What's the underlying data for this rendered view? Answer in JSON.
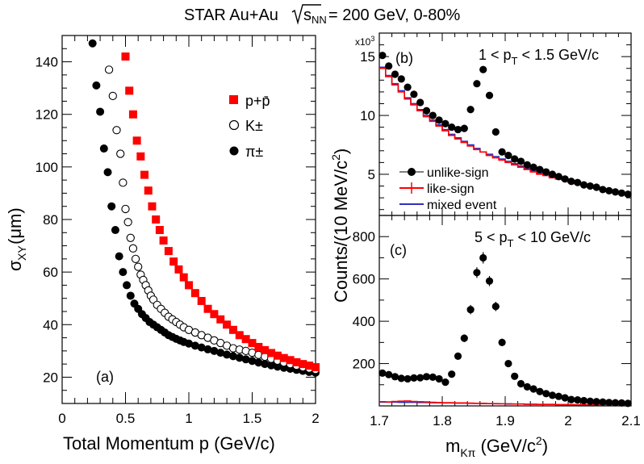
{
  "header": {
    "title_prefix": "STAR  Au+Au",
    "title_sqrt_s": "s",
    "title_sqrt_sub": "NN",
    "title_suffix": " = 200 GeV, 0-80%"
  },
  "colors": {
    "proton": "#ff0000",
    "kaon": "#000000",
    "pion": "#000000",
    "like_sign": "#ff0000",
    "mixed_event": "#3030c0"
  },
  "chart_data": [
    {
      "type": "scatter",
      "panel_label": "(a)",
      "xlabel": "Total Momentum p (GeV/c)",
      "ylabel_main": "σ",
      "ylabel_sub": "XY",
      "ylabel_unit": " (μm)",
      "xlim": [
        0,
        2
      ],
      "ylim": [
        10,
        150
      ],
      "xticks": [
        "0",
        "0.5",
        "1",
        "1.5",
        "2"
      ],
      "yticks": [
        "20",
        "40",
        "60",
        "80",
        "100",
        "120",
        "140"
      ],
      "ytick_values": [
        20,
        40,
        60,
        80,
        100,
        120,
        140
      ],
      "xtick_values": [
        0,
        0.5,
        1,
        1.5,
        2
      ],
      "legend_position": "top-right",
      "series": [
        {
          "name": "p+p̄",
          "marker": "square-filled",
          "x": [
            0.5,
            0.53,
            0.56,
            0.59,
            0.62,
            0.65,
            0.68,
            0.71,
            0.74,
            0.77,
            0.8,
            0.84,
            0.88,
            0.92,
            0.96,
            1.0,
            1.05,
            1.1,
            1.15,
            1.2,
            1.25,
            1.3,
            1.35,
            1.4,
            1.45,
            1.5,
            1.55,
            1.6,
            1.65,
            1.7,
            1.75,
            1.8,
            1.85,
            1.9,
            1.95,
            2.0
          ],
          "y": [
            142,
            129,
            120,
            110,
            104,
            97,
            91,
            85,
            80,
            76,
            72,
            68,
            64,
            61,
            58,
            55,
            52,
            49,
            46,
            44,
            42,
            40,
            38,
            36,
            34.5,
            33,
            31.5,
            30.3,
            29.2,
            28.2,
            27.3,
            26.5,
            25.7,
            25,
            24.4,
            23.8
          ]
        },
        {
          "name": "K±",
          "marker": "circle-open",
          "x": [
            0.37,
            0.4,
            0.43,
            0.46,
            0.48,
            0.5,
            0.52,
            0.54,
            0.56,
            0.58,
            0.6,
            0.62,
            0.64,
            0.66,
            0.68,
            0.7,
            0.72,
            0.75,
            0.78,
            0.81,
            0.84,
            0.87,
            0.9,
            0.93,
            0.96,
            1.0,
            1.05,
            1.1,
            1.15,
            1.2,
            1.25,
            1.3,
            1.35,
            1.4,
            1.45,
            1.5,
            1.55,
            1.6,
            1.65,
            1.7,
            1.75,
            1.8,
            1.85,
            1.9,
            1.95,
            2.0
          ],
          "y": [
            137,
            127,
            114,
            105,
            94,
            84,
            79,
            73,
            69,
            65,
            62,
            59,
            57,
            55,
            53,
            51,
            49.5,
            47.5,
            46,
            44.5,
            43,
            42,
            41,
            40,
            39,
            38,
            37,
            36,
            35,
            34,
            33,
            32,
            31,
            30.5,
            30,
            29.3,
            28.5,
            27.8,
            27,
            26.3,
            25.6,
            25,
            24.4,
            23.8,
            23.3,
            22.8
          ]
        },
        {
          "name": "π±",
          "marker": "circle-filled",
          "x": [
            0.24,
            0.27,
            0.3,
            0.33,
            0.36,
            0.39,
            0.42,
            0.45,
            0.48,
            0.51,
            0.54,
            0.57,
            0.6,
            0.63,
            0.66,
            0.69,
            0.72,
            0.75,
            0.78,
            0.81,
            0.84,
            0.87,
            0.9,
            0.93,
            0.96,
            1.0,
            1.05,
            1.1,
            1.15,
            1.2,
            1.25,
            1.3,
            1.35,
            1.4,
            1.45,
            1.5,
            1.55,
            1.6,
            1.65,
            1.7,
            1.75,
            1.8,
            1.85,
            1.9,
            1.95,
            2.0
          ],
          "y": [
            147,
            131,
            121,
            107,
            98,
            85,
            76,
            66,
            60,
            55,
            51,
            48,
            46,
            44,
            42.5,
            41,
            40,
            39,
            38,
            37,
            36,
            35.3,
            34.6,
            34,
            33.4,
            32.8,
            32,
            31.3,
            30.6,
            30,
            29.3,
            28.6,
            28,
            27.4,
            26.8,
            26.2,
            25.6,
            25,
            24.5,
            24,
            23.6,
            23.2,
            22.8,
            22.4,
            22,
            21.7
          ]
        }
      ]
    },
    {
      "type": "scatter",
      "panel_label": "(b)",
      "pt_range_label_left": "1 < p",
      "pt_range_label_sub": "T",
      "pt_range_label_right": " < 1.5 GeV/c",
      "y_multiplier": "x10",
      "y_multiplier_exp": "3",
      "xlim": [
        1.7,
        2.1
      ],
      "ylim": [
        1.5,
        17
      ],
      "yticks": [
        "5",
        "10",
        "15"
      ],
      "ytick_values": [
        5,
        10,
        15
      ],
      "legend_position": "bottom-left",
      "series": [
        {
          "name": "unlike-sign",
          "marker": "circle-filled",
          "x": [
            1.705,
            1.715,
            1.725,
            1.735,
            1.745,
            1.755,
            1.765,
            1.775,
            1.785,
            1.795,
            1.805,
            1.815,
            1.825,
            1.835,
            1.845,
            1.855,
            1.865,
            1.875,
            1.885,
            1.895,
            1.905,
            1.915,
            1.925,
            1.935,
            1.945,
            1.955,
            1.965,
            1.975,
            1.985,
            1.995,
            2.005,
            2.015,
            2.025,
            2.035,
            2.045,
            2.055,
            2.065,
            2.075,
            2.085,
            2.095
          ],
          "y": [
            15.1,
            14.2,
            13.5,
            13.1,
            12.4,
            11.8,
            11.1,
            10.4,
            10,
            9.6,
            9.3,
            9.0,
            8.8,
            8.9,
            10.5,
            12.7,
            13.9,
            11.7,
            8.6,
            6.9,
            6.6,
            6.3,
            6.1,
            5.8,
            5.6,
            5.4,
            5.2,
            5.0,
            4.8,
            4.6,
            4.4,
            4.3,
            4.1,
            4.0,
            3.9,
            3.7,
            3.6,
            3.5,
            3.4,
            3.3
          ]
        },
        {
          "name": "like-sign",
          "marker": "histogram-red",
          "x": [
            1.705,
            1.715,
            1.725,
            1.735,
            1.745,
            1.755,
            1.765,
            1.775,
            1.785,
            1.795,
            1.805,
            1.815,
            1.825,
            1.835,
            1.845,
            1.855,
            1.865,
            1.875,
            1.885,
            1.895,
            1.905,
            1.915,
            1.925,
            1.935,
            1.945,
            1.955,
            1.965,
            1.975,
            1.985,
            1.995,
            2.005,
            2.015,
            2.025,
            2.035,
            2.045,
            2.055,
            2.065,
            2.075,
            2.085,
            2.095
          ],
          "y": [
            14.0,
            13.3,
            12.6,
            12.0,
            11.4,
            10.9,
            10.4,
            9.9,
            9.5,
            9.1,
            8.7,
            8.3,
            8.0,
            7.7,
            7.4,
            7.1,
            6.9,
            6.6,
            6.4,
            6.2,
            6.0,
            5.8,
            5.6,
            5.4,
            5.2,
            5.0,
            4.9,
            4.7,
            4.6,
            4.5,
            4.3,
            4.2,
            4.1,
            4.0,
            3.9,
            3.7,
            3.6,
            3.5,
            3.4,
            3.3
          ]
        },
        {
          "name": "mixed event",
          "marker": "histogram-blue",
          "x": [
            1.705,
            1.715,
            1.725,
            1.735,
            1.745,
            1.755,
            1.765,
            1.775,
            1.785,
            1.795,
            1.805,
            1.815,
            1.825,
            1.835,
            1.845,
            1.855,
            1.865,
            1.875,
            1.885,
            1.895,
            1.905,
            1.915,
            1.925,
            1.935,
            1.945,
            1.955,
            1.965,
            1.975,
            1.985,
            1.995,
            2.005,
            2.015,
            2.025,
            2.035,
            2.045,
            2.055,
            2.065,
            2.075,
            2.085,
            2.095
          ],
          "y": [
            14.1,
            13.4,
            12.7,
            12.1,
            11.5,
            11.0,
            10.5,
            10.0,
            9.6,
            9.2,
            8.8,
            8.4,
            8.1,
            7.8,
            7.5,
            7.2,
            6.9,
            6.7,
            6.5,
            6.3,
            6.1,
            5.9,
            5.7,
            5.5,
            5.3,
            5.1,
            4.9,
            4.8,
            4.6,
            4.5,
            4.4,
            4.2,
            4.1,
            4.0,
            3.9,
            3.7,
            3.6,
            3.5,
            3.4,
            3.3
          ]
        }
      ]
    },
    {
      "type": "scatter",
      "panel_label": "(c)",
      "pt_range_label_left": "5 < p",
      "pt_range_label_sub": "T",
      "pt_range_label_right": " < 10 GeV/c",
      "xlim": [
        1.7,
        2.1
      ],
      "ylim": [
        0,
        900
      ],
      "yticks": [
        "200",
        "400",
        "600",
        "800"
      ],
      "ytick_values": [
        200,
        400,
        600,
        800
      ],
      "xticks": [
        "1.7",
        "1.8",
        "1.9",
        "2",
        "2.1"
      ],
      "xtick_values": [
        1.7,
        1.8,
        1.9,
        2.0,
        2.1
      ],
      "xlabel_main": "m",
      "xlabel_sub": "Kπ",
      "xlabel_unit": " (GeV/c",
      "xlabel_exp": "2",
      "xlabel_close": ")",
      "shared_ylabel": "Counts/(10 MeV/c",
      "shared_ylabel_exp": "2",
      "shared_ylabel_close": ")",
      "series": [
        {
          "name": "unlike-sign",
          "marker": "circle-filled",
          "x": [
            1.705,
            1.715,
            1.725,
            1.735,
            1.745,
            1.755,
            1.765,
            1.775,
            1.785,
            1.795,
            1.805,
            1.815,
            1.825,
            1.835,
            1.845,
            1.855,
            1.865,
            1.875,
            1.885,
            1.895,
            1.905,
            1.915,
            1.925,
            1.935,
            1.945,
            1.955,
            1.965,
            1.975,
            1.985,
            1.995,
            2.005,
            2.015,
            2.025,
            2.035,
            2.045,
            2.055,
            2.065,
            2.075,
            2.085,
            2.095
          ],
          "y": [
            155,
            148,
            138,
            130,
            128,
            132,
            133,
            138,
            136,
            128,
            112,
            150,
            235,
            320,
            455,
            630,
            700,
            590,
            470,
            300,
            200,
            140,
            105,
            90,
            80,
            68,
            58,
            50,
            45,
            38,
            30,
            28,
            25,
            22,
            20,
            18,
            16,
            15,
            14,
            12
          ],
          "yerr": [
            12,
            12,
            12,
            12,
            12,
            12,
            12,
            12,
            12,
            12,
            12,
            14,
            16,
            18,
            22,
            25,
            27,
            24,
            22,
            18,
            14,
            12,
            10,
            10,
            9,
            8,
            8,
            7,
            7,
            6,
            6,
            5,
            5,
            5,
            5,
            4,
            4,
            4,
            4,
            4
          ]
        },
        {
          "name": "like-sign",
          "marker": "histogram-red",
          "x": [
            1.705,
            1.715,
            1.725,
            1.735,
            1.745,
            1.755,
            1.765,
            1.775,
            1.785,
            1.795,
            1.805,
            1.815,
            1.825,
            1.835,
            1.845,
            1.855,
            1.865,
            1.875,
            1.885,
            1.895,
            1.905,
            1.915,
            1.925,
            1.935,
            1.945,
            1.955,
            1.965,
            1.975,
            1.985,
            1.995,
            2.005,
            2.015,
            2.025,
            2.035,
            2.045,
            2.055,
            2.065,
            2.075,
            2.085,
            2.095
          ],
          "y": [
            20,
            19,
            21,
            22,
            23,
            21,
            20,
            19,
            17,
            16,
            15,
            15,
            14,
            14,
            13,
            12,
            12,
            11,
            11,
            10,
            10,
            9,
            9,
            8,
            8,
            7,
            7,
            7,
            6,
            6,
            6,
            5,
            5,
            5,
            5,
            4,
            4,
            4,
            4,
            3
          ]
        },
        {
          "name": "mixed event",
          "marker": "histogram-blue",
          "x": [
            1.705,
            1.715,
            1.725,
            1.735,
            1.745,
            1.755,
            1.765,
            1.775,
            1.785,
            1.795,
            1.805,
            1.815,
            1.825,
            1.835,
            1.845,
            1.855,
            1.865,
            1.875,
            1.885,
            1.895,
            1.905,
            1.915,
            1.925,
            1.935,
            1.945,
            1.955,
            1.965,
            1.975,
            1.985,
            1.995,
            2.005,
            2.015,
            2.025,
            2.035,
            2.045,
            2.055,
            2.065,
            2.075,
            2.085,
            2.095
          ],
          "y": [
            18,
            18,
            18,
            17,
            17,
            17,
            16,
            16,
            15,
            15,
            14,
            14,
            13,
            13,
            12,
            12,
            11,
            11,
            10,
            10,
            9,
            9,
            9,
            8,
            8,
            7,
            7,
            7,
            6,
            6,
            6,
            5,
            5,
            5,
            5,
            4,
            4,
            4,
            4,
            3
          ]
        }
      ]
    }
  ]
}
